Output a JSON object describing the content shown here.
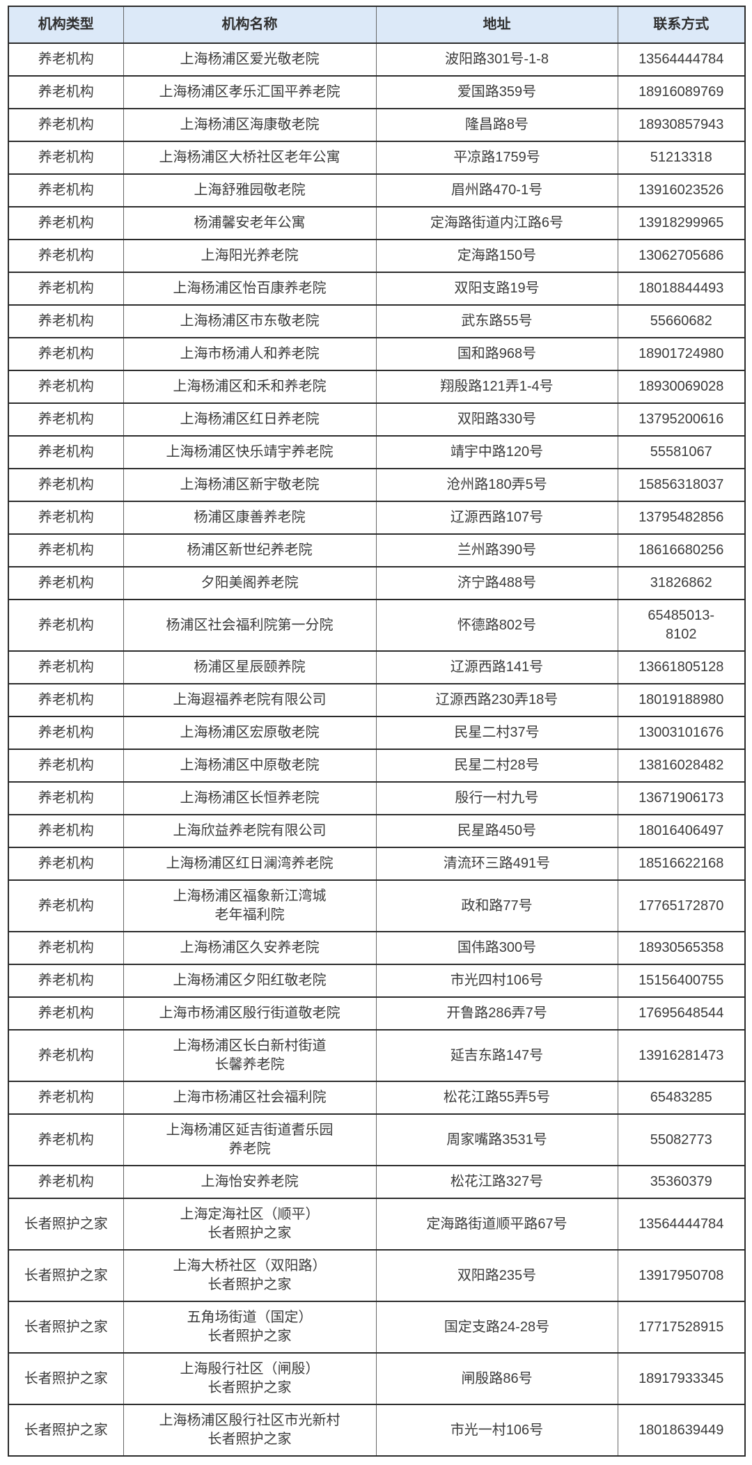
{
  "colors": {
    "header_bg": "#dce9f8",
    "header_text": "#2f2f2f",
    "body_text": "#3b3b3b",
    "border_heavy": "#2b2b2b",
    "border_light": "#666666",
    "page_bg": "#ffffff"
  },
  "table": {
    "columns": [
      "机构类型",
      "机构名称",
      "地址",
      "联系方式"
    ],
    "rows": [
      {
        "type": "养老机构",
        "name": "上海杨浦区爱光敬老院",
        "address": "波阳路301号-1-8",
        "phone": "13564444784"
      },
      {
        "type": "养老机构",
        "name": "上海杨浦区孝乐汇国平养老院",
        "address": "爱国路359号",
        "phone": "18916089769"
      },
      {
        "type": "养老机构",
        "name": "上海杨浦区海康敬老院",
        "address": "隆昌路8号",
        "phone": "18930857943"
      },
      {
        "type": "养老机构",
        "name": "上海杨浦区大桥社区老年公寓",
        "address": "平凉路1759号",
        "phone": "51213318"
      },
      {
        "type": "养老机构",
        "name": "上海舒雅园敬老院",
        "address": "眉州路470-1号",
        "phone": "13916023526"
      },
      {
        "type": "养老机构",
        "name": "杨浦馨安老年公寓",
        "address": "定海路街道内江路6号",
        "phone": "13918299965"
      },
      {
        "type": "养老机构",
        "name": "上海阳光养老院",
        "address": "定海路150号",
        "phone": "13062705686"
      },
      {
        "type": "养老机构",
        "name": "上海杨浦区怡百康养老院",
        "address": "双阳支路19号",
        "phone": "18018844493"
      },
      {
        "type": "养老机构",
        "name": "上海杨浦区市东敬老院",
        "address": "武东路55号",
        "phone": "55660682"
      },
      {
        "type": "养老机构",
        "name": "上海市杨浦人和养老院",
        "address": "国和路968号",
        "phone": "18901724980"
      },
      {
        "type": "养老机构",
        "name": "上海杨浦区和禾和养老院",
        "address": "翔殷路121弄1-4号",
        "phone": "18930069028"
      },
      {
        "type": "养老机构",
        "name": "上海杨浦区红日养老院",
        "address": "双阳路330号",
        "phone": "13795200616"
      },
      {
        "type": "养老机构",
        "name": "上海杨浦区快乐靖宇养老院",
        "address": "靖宇中路120号",
        "phone": "55581067"
      },
      {
        "type": "养老机构",
        "name": "上海杨浦区新宇敬老院",
        "address": "沧州路180弄5号",
        "phone": "15856318037"
      },
      {
        "type": "养老机构",
        "name": "杨浦区康善养老院",
        "address": "辽源西路107号",
        "phone": "13795482856"
      },
      {
        "type": "养老机构",
        "name": "杨浦区新世纪养老院",
        "address": "兰州路390号",
        "phone": "18616680256"
      },
      {
        "type": "养老机构",
        "name": "夕阳美阁养老院",
        "address": "济宁路488号",
        "phone": "31826862"
      },
      {
        "type": "养老机构",
        "name": "杨浦区社会福利院第一分院",
        "address": "怀德路802号",
        "phone": "65485013-\n8102"
      },
      {
        "type": "养老机构",
        "name": "杨浦区星辰颐养院",
        "address": "辽源西路141号",
        "phone": "13661805128"
      },
      {
        "type": "养老机构",
        "name": "上海遐福养老院有限公司",
        "address": "辽源西路230弄18号",
        "phone": "18019188980"
      },
      {
        "type": "养老机构",
        "name": "上海杨浦区宏原敬老院",
        "address": "民星二村37号",
        "phone": "13003101676"
      },
      {
        "type": "养老机构",
        "name": "上海杨浦区中原敬老院",
        "address": "民星二村28号",
        "phone": "13816028482"
      },
      {
        "type": "养老机构",
        "name": "上海杨浦区长恒养老院",
        "address": "殷行一村九号",
        "phone": "13671906173"
      },
      {
        "type": "养老机构",
        "name": "上海欣益养老院有限公司",
        "address": "民星路450号",
        "phone": "18016406497"
      },
      {
        "type": "养老机构",
        "name": "上海杨浦区红日澜湾养老院",
        "address": "清流环三路491号",
        "phone": "18516622168"
      },
      {
        "type": "养老机构",
        "name": "上海杨浦区福象新江湾城\n老年福利院",
        "address": "政和路77号",
        "phone": "17765172870"
      },
      {
        "type": "养老机构",
        "name": "上海杨浦区久安养老院",
        "address": "国伟路300号",
        "phone": "18930565358"
      },
      {
        "type": "养老机构",
        "name": "上海杨浦区夕阳红敬老院",
        "address": "市光四村106号",
        "phone": "15156400755"
      },
      {
        "type": "养老机构",
        "name": "上海市杨浦区殷行街道敬老院",
        "address": "开鲁路286弄7号",
        "phone": "17695648544"
      },
      {
        "type": "养老机构",
        "name": "上海杨浦区长白新村街道\n长馨养老院",
        "address": "延吉东路147号",
        "phone": "13916281473"
      },
      {
        "type": "养老机构",
        "name": "上海市杨浦区社会福利院",
        "address": "松花江路55弄5号",
        "phone": "65483285"
      },
      {
        "type": "养老机构",
        "name": "上海杨浦区延吉街道耆乐园\n养老院",
        "address": "周家嘴路3531号",
        "phone": "55082773"
      },
      {
        "type": "养老机构",
        "name": "上海怡安养老院",
        "address": "松花江路327号",
        "phone": "35360379"
      },
      {
        "type": "长者照护之家",
        "name": "上海定海社区（顺平）\n长者照护之家",
        "address": "定海路街道顺平路67号",
        "phone": "13564444784"
      },
      {
        "type": "长者照护之家",
        "name": "上海大桥社区（双阳路）\n长者照护之家",
        "address": "双阳路235号",
        "phone": "13917950708"
      },
      {
        "type": "长者照护之家",
        "name": "五角场街道（国定）\n长者照护之家",
        "address": "国定支路24-28号",
        "phone": "17717528915"
      },
      {
        "type": "长者照护之家",
        "name": "上海殷行社区（闸殷）\n长者照护之家",
        "address": "闸殷路86号",
        "phone": "18917933345"
      },
      {
        "type": "长者照护之家",
        "name": "上海杨浦区殷行社区市光新村\n长者照护之家",
        "address": "市光一村106号",
        "phone": "18018639449"
      }
    ]
  }
}
